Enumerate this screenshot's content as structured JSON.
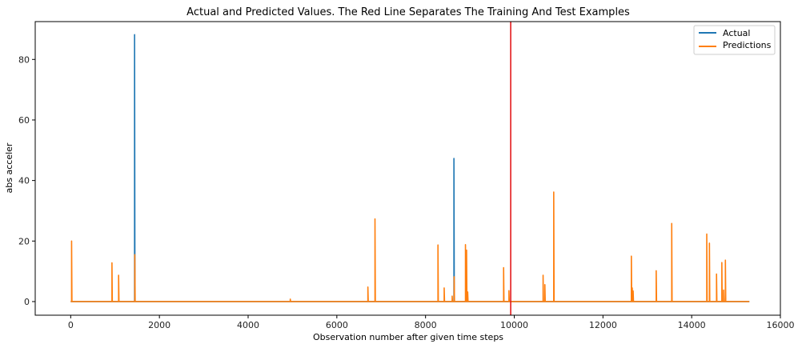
{
  "chart_data": {
    "type": "line",
    "title": "Actual and Predicted Values. The Red Line Separates The Training And Test Examples",
    "xlabel": "Observation number after given time steps",
    "ylabel": "abs acceler",
    "xlim": [
      -800,
      16000
    ],
    "ylim": [
      -4.5,
      92.5
    ],
    "xticks": [
      0,
      2000,
      4000,
      6000,
      8000,
      10000,
      12000,
      14000,
      16000
    ],
    "yticks": [
      0,
      20,
      40,
      60,
      80
    ],
    "separator": {
      "x": 9920,
      "color": "#e31a1c"
    },
    "legend": {
      "placement": "top-right",
      "entries": [
        "Actual",
        "Predictions"
      ]
    },
    "x_max": 15300,
    "series": [
      {
        "name": "Actual",
        "color": "#1f77b4",
        "spikes": [
          [
            1440,
            88.2
          ],
          [
            8640,
            47.3
          ]
        ]
      },
      {
        "name": "Predictions",
        "color": "#ff7f0e",
        "spikes": [
          [
            20,
            20.0
          ],
          [
            930,
            12.8
          ],
          [
            1080,
            8.7
          ],
          [
            1445,
            15.5
          ],
          [
            4950,
            0.8
          ],
          [
            6700,
            4.8
          ],
          [
            6860,
            27.3
          ],
          [
            8280,
            18.7
          ],
          [
            8420,
            4.5
          ],
          [
            8600,
            1.8
          ],
          [
            8645,
            8.2
          ],
          [
            8900,
            18.8
          ],
          [
            8925,
            17.0
          ],
          [
            8950,
            3.2
          ],
          [
            9760,
            11.2
          ],
          [
            9880,
            3.6
          ],
          [
            10650,
            8.7
          ],
          [
            10690,
            5.6
          ],
          [
            10890,
            36.2
          ],
          [
            12640,
            15.0
          ],
          [
            12660,
            4.5
          ],
          [
            12680,
            3.5
          ],
          [
            13200,
            10.2
          ],
          [
            13550,
            25.8
          ],
          [
            14340,
            22.3
          ],
          [
            14400,
            19.3
          ],
          [
            14560,
            9.1
          ],
          [
            14680,
            12.9
          ],
          [
            14720,
            3.8
          ],
          [
            14760,
            13.7
          ]
        ]
      }
    ]
  }
}
